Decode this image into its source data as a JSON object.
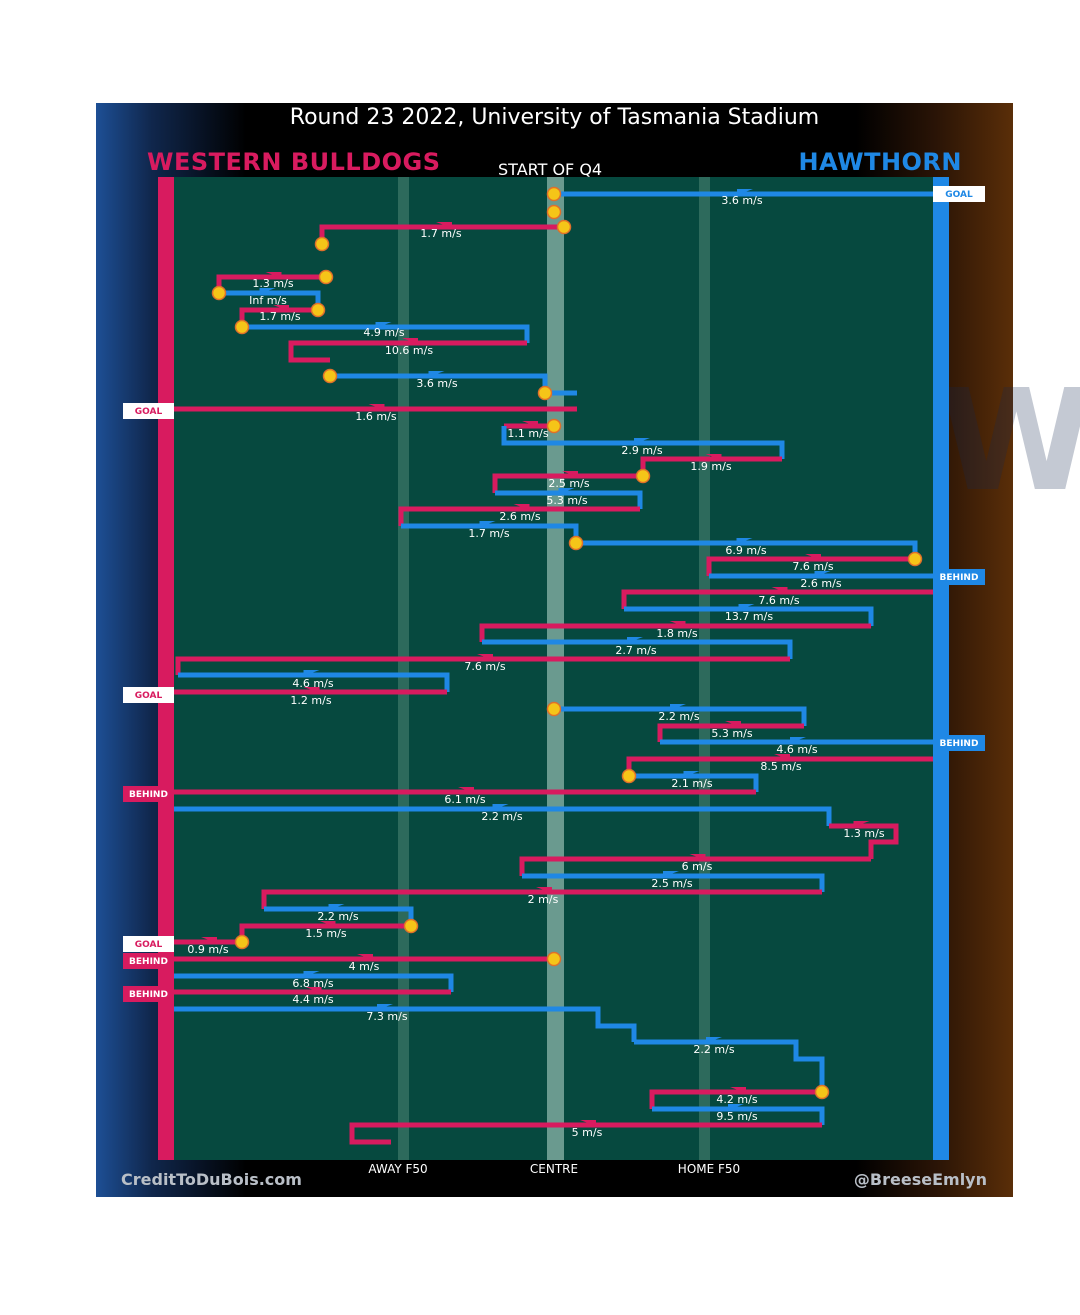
{
  "title": "Round 23 2022, University of Tasmania Stadium",
  "team_left": "WESTERN BULLDOGS",
  "team_right": "HAWTHORN",
  "quarter_label": "START OF Q4",
  "axis_labels": {
    "away": "AWAY F50",
    "centre": "CENTRE",
    "home": "HOME F50"
  },
  "credit_left": "CreditToDuBois.com",
  "credit_right": "@BreeseEmlyn",
  "colors": {
    "bulldogs": "#d81b5f",
    "hawthorn": "#1f88e5",
    "field": "#06493f",
    "marker": "#f5c518"
  },
  "chart_data": {
    "type": "line",
    "xlabel": "",
    "ylabel": "",
    "x_ticks": [
      "AWAY F50",
      "CENTRE",
      "HOME F50"
    ],
    "chains": [
      {
        "team": "hawthorn",
        "speed": "3.6 m/s",
        "result": "GOAL"
      },
      {
        "team": "bulldogs",
        "speed": "1.7 m/s"
      },
      {
        "team": "bulldogs",
        "speed": "1.3 m/s"
      },
      {
        "team": "hawthorn",
        "speed": "Inf m/s"
      },
      {
        "team": "bulldogs",
        "speed": "1.7 m/s"
      },
      {
        "team": "hawthorn",
        "speed": "4.9 m/s"
      },
      {
        "team": "bulldogs",
        "speed": "10.6 m/s"
      },
      {
        "team": "hawthorn",
        "speed": "3.6 m/s"
      },
      {
        "team": "bulldogs",
        "speed": "1.6 m/s",
        "result": "GOAL"
      },
      {
        "team": "bulldogs",
        "speed": "1.1 m/s"
      },
      {
        "team": "hawthorn",
        "speed": "2.9 m/s"
      },
      {
        "team": "bulldogs",
        "speed": "1.9 m/s"
      },
      {
        "team": "bulldogs",
        "speed": "2.5 m/s"
      },
      {
        "team": "hawthorn",
        "speed": "5.3 m/s"
      },
      {
        "team": "bulldogs",
        "speed": "2.6 m/s"
      },
      {
        "team": "hawthorn",
        "speed": "1.7 m/s"
      },
      {
        "team": "hawthorn",
        "speed": "6.9 m/s"
      },
      {
        "team": "bulldogs",
        "speed": "7.6 m/s"
      },
      {
        "team": "hawthorn",
        "speed": "2.6 m/s",
        "result": "BEHIND"
      },
      {
        "team": "bulldogs",
        "speed": "7.6 m/s"
      },
      {
        "team": "hawthorn",
        "speed": "13.7 m/s"
      },
      {
        "team": "bulldogs",
        "speed": "1.8 m/s"
      },
      {
        "team": "hawthorn",
        "speed": "2.7 m/s"
      },
      {
        "team": "bulldogs",
        "speed": "7.6 m/s"
      },
      {
        "team": "hawthorn",
        "speed": "4.6 m/s"
      },
      {
        "team": "bulldogs",
        "speed": "1.2 m/s",
        "result": "GOAL"
      },
      {
        "team": "hawthorn",
        "speed": "2.2 m/s"
      },
      {
        "team": "bulldogs",
        "speed": "5.3 m/s"
      },
      {
        "team": "hawthorn",
        "speed": "4.6 m/s",
        "result": "BEHIND"
      },
      {
        "team": "bulldogs",
        "speed": "8.5 m/s"
      },
      {
        "team": "hawthorn",
        "speed": "2.1 m/s"
      },
      {
        "team": "bulldogs",
        "speed": "6.1 m/s",
        "result": "BEHIND"
      },
      {
        "team": "hawthorn",
        "speed": "2.2 m/s"
      },
      {
        "team": "bulldogs",
        "speed": "1.3 m/s"
      },
      {
        "team": "bulldogs",
        "speed": "6 m/s"
      },
      {
        "team": "hawthorn",
        "speed": "2.5 m/s"
      },
      {
        "team": "bulldogs",
        "speed": "2 m/s"
      },
      {
        "team": "hawthorn",
        "speed": "2.2 m/s"
      },
      {
        "team": "bulldogs",
        "speed": "1.5 m/s"
      },
      {
        "team": "bulldogs",
        "speed": "0.9 m/s",
        "result": "GOAL"
      },
      {
        "team": "bulldogs",
        "speed": "4 m/s",
        "result": "BEHIND"
      },
      {
        "team": "hawthorn",
        "speed": "6.8 m/s"
      },
      {
        "team": "bulldogs",
        "speed": "4.4 m/s",
        "result": "BEHIND"
      },
      {
        "team": "hawthorn",
        "speed": "7.3 m/s"
      },
      {
        "team": "hawthorn",
        "speed": "2.2 m/s"
      },
      {
        "team": "bulldogs",
        "speed": "4.2 m/s"
      },
      {
        "team": "hawthorn",
        "speed": "9.5 m/s"
      },
      {
        "team": "bulldogs",
        "speed": "5 m/s"
      }
    ]
  }
}
